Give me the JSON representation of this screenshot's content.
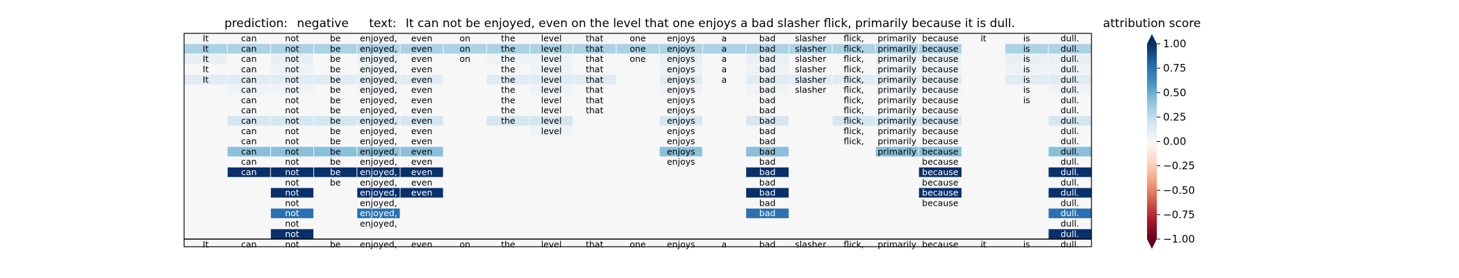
{
  "chart_data": {
    "type": "heatmap",
    "title": {
      "prediction_label": "prediction:",
      "prediction_value": "negative",
      "text_label": "text:",
      "text_value": "It can not be enjoyed, even on the level that one enjoys a bad slasher flick, primarily because it is dull."
    },
    "tokens": [
      "It",
      "can",
      "not",
      "be",
      "enjoyed,",
      "even",
      "on",
      "the",
      "level",
      "that",
      "one",
      "enjoys",
      "a",
      "bad",
      "slasher",
      "flick,",
      "primarily",
      "because",
      "it",
      "is",
      "dull."
    ],
    "rows": [
      {
        "present": [
          0,
          1,
          2,
          3,
          4,
          5,
          6,
          7,
          8,
          9,
          10,
          11,
          12,
          13,
          14,
          15,
          16,
          17,
          18,
          19,
          20
        ],
        "values": {}
      },
      {
        "present": [
          0,
          1,
          2,
          3,
          4,
          5,
          6,
          7,
          8,
          9,
          10,
          11,
          12,
          13,
          14,
          15,
          16,
          17,
          19,
          20
        ],
        "values": {
          "0": 0.32,
          "1": 0.32,
          "2": 0.32,
          "3": 0.32,
          "4": 0.32,
          "5": 0.32,
          "6": 0.32,
          "7": 0.32,
          "8": 0.32,
          "9": 0.32,
          "10": 0.32,
          "11": 0.32,
          "12": 0.32,
          "13": 0.32,
          "14": 0.32,
          "15": 0.32,
          "16": 0.32,
          "17": 0.32,
          "19": 0.32,
          "20": 0.32
        }
      },
      {
        "present": [
          0,
          1,
          2,
          3,
          4,
          5,
          6,
          7,
          8,
          9,
          10,
          11,
          12,
          13,
          14,
          15,
          16,
          17,
          19,
          20
        ],
        "values": {
          "0": 0.08,
          "2": 0.08,
          "4": 0.08,
          "7": 0.05,
          "8": 0.05,
          "11": 0.08,
          "13": 0.08,
          "16": 0.08,
          "17": 0.08,
          "19": 0.08,
          "20": 0.08
        }
      },
      {
        "present": [
          0,
          1,
          2,
          3,
          4,
          5,
          7,
          8,
          9,
          11,
          12,
          13,
          14,
          15,
          16,
          17,
          19,
          20
        ],
        "values": {
          "2": 0.06,
          "4": 0.06,
          "8": 0.06,
          "11": 0.06,
          "13": 0.06,
          "16": 0.06,
          "17": 0.06,
          "19": 0.06,
          "20": 0.06
        }
      },
      {
        "present": [
          0,
          1,
          2,
          3,
          4,
          5,
          7,
          8,
          9,
          11,
          12,
          13,
          14,
          15,
          16,
          17,
          19,
          20
        ],
        "values": {
          "0": 0.12,
          "1": 0.12,
          "2": 0.12,
          "3": 0.12,
          "4": 0.12,
          "5": 0.12,
          "7": 0.12,
          "8": 0.12,
          "9": 0.12,
          "11": 0.12,
          "13": 0.12,
          "14": 0.12,
          "15": 0.12,
          "16": 0.12,
          "17": 0.12,
          "19": 0.12,
          "20": 0.12
        }
      },
      {
        "present": [
          1,
          2,
          3,
          4,
          5,
          7,
          8,
          9,
          11,
          13,
          14,
          15,
          16,
          17,
          19,
          20
        ],
        "values": {
          "1": 0.04,
          "2": 0.04,
          "4": 0.04,
          "8": 0.04,
          "11": 0.04,
          "13": 0.04,
          "16": 0.04,
          "17": 0.04,
          "20": 0.04
        }
      },
      {
        "present": [
          1,
          2,
          3,
          4,
          5,
          7,
          8,
          9,
          11,
          13,
          15,
          16,
          17,
          19,
          20
        ],
        "values": {}
      },
      {
        "present": [
          1,
          2,
          3,
          4,
          5,
          7,
          8,
          9,
          11,
          13,
          15,
          16,
          17,
          20
        ],
        "values": {}
      },
      {
        "present": [
          1,
          2,
          3,
          4,
          5,
          7,
          8,
          11,
          13,
          15,
          16,
          17,
          20
        ],
        "values": {
          "1": 0.18,
          "2": 0.18,
          "3": 0.18,
          "4": 0.18,
          "5": 0.18,
          "7": 0.18,
          "8": 0.18,
          "11": 0.18,
          "13": 0.18,
          "15": 0.18,
          "16": 0.18,
          "17": 0.18,
          "20": 0.18
        }
      },
      {
        "present": [
          1,
          2,
          3,
          4,
          5,
          8,
          11,
          13,
          15,
          16,
          17,
          20
        ],
        "values": {
          "8": 0.04
        }
      },
      {
        "present": [
          1,
          2,
          3,
          4,
          5,
          11,
          13,
          15,
          16,
          17,
          20
        ],
        "values": {}
      },
      {
        "present": [
          1,
          2,
          3,
          4,
          5,
          11,
          13,
          16,
          17,
          20
        ],
        "values": {
          "1": 0.42,
          "2": 0.42,
          "3": 0.42,
          "4": 0.42,
          "5": 0.42,
          "11": 0.42,
          "13": 0.42,
          "16": 0.42,
          "17": 0.42,
          "20": 0.42
        }
      },
      {
        "present": [
          1,
          2,
          3,
          4,
          5,
          11,
          13,
          17,
          20
        ],
        "values": {}
      },
      {
        "present": [
          1,
          2,
          3,
          4,
          5,
          13,
          17,
          20
        ],
        "values": {
          "1": 1.0,
          "2": 1.0,
          "3": 1.0,
          "4": 1.0,
          "5": 1.0,
          "13": 1.0,
          "17": 1.0,
          "20": 1.0
        }
      },
      {
        "present": [
          2,
          3,
          4,
          5,
          13,
          17,
          20
        ],
        "values": {}
      },
      {
        "present": [
          2,
          4,
          5,
          13,
          17,
          20
        ],
        "values": {
          "2": 1.0,
          "4": 1.0,
          "5": 1.0,
          "13": 1.0,
          "17": 1.0,
          "20": 1.0
        }
      },
      {
        "present": [
          2,
          4,
          13,
          17,
          20
        ],
        "values": {}
      },
      {
        "present": [
          2,
          4,
          13,
          20
        ],
        "values": {
          "2": 0.75,
          "4": 0.75,
          "13": 0.75,
          "20": 0.75
        }
      },
      {
        "present": [
          2,
          4,
          20
        ],
        "values": {}
      },
      {
        "present": [
          2,
          20
        ],
        "values": {
          "2": 1.0,
          "20": 1.0
        }
      }
    ],
    "colorbar": {
      "label": "attribution score",
      "range": [
        -1.0,
        1.0
      ],
      "ticks": [
        "1.00",
        "0.75",
        "0.50",
        "0.25",
        "0.00",
        "−0.25",
        "−0.50",
        "−0.75",
        "−1.00"
      ],
      "colormap": "RdBu",
      "extend": "both"
    },
    "colors": {
      "strong_positive": "#08306b",
      "mid_positive": "#2166ac",
      "light_positive": "#92c5de",
      "neutral": "#f7f7f7",
      "negative": "#b2182b",
      "strong_negative": "#67001f"
    }
  }
}
